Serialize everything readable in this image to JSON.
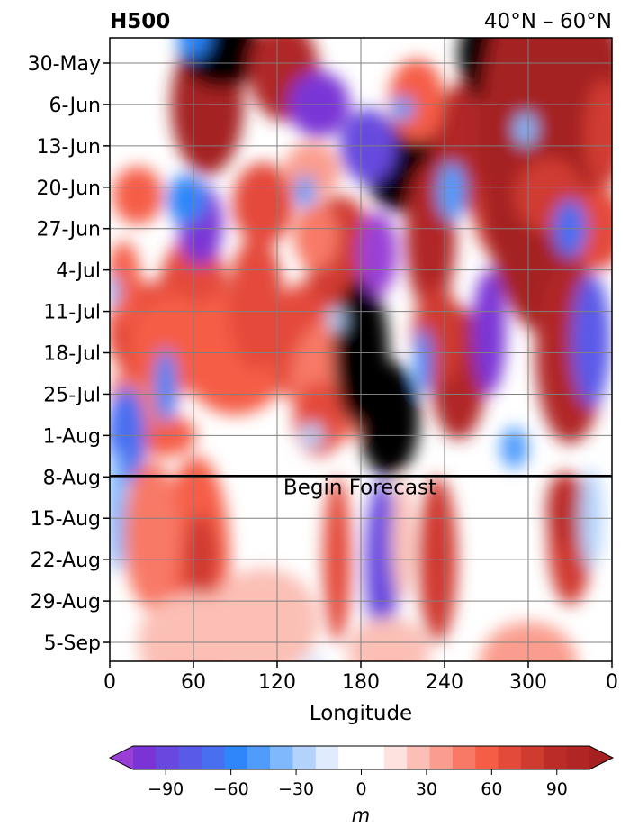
{
  "chart_data": {
    "type": "heatmap",
    "title_left": "H500",
    "title_right": "40°N – 60°N",
    "xlabel": "Longitude",
    "x_ticks": [
      "0",
      "60",
      "120",
      "180",
      "240",
      "300",
      "0"
    ],
    "xlim": [
      0,
      360
    ],
    "y_ticks": [
      "30-May",
      "6-Jun",
      "13-Jun",
      "20-Jun",
      "27-Jun",
      "4-Jul",
      "11-Jul",
      "18-Jul",
      "25-Jul",
      "1-Aug",
      "8-Aug",
      "15-Aug",
      "22-Aug",
      "29-Aug",
      "5-Sep"
    ],
    "forecast_start": "8-Aug",
    "annotation": "Begin Forecast",
    "colorbar": {
      "label": "m",
      "range": [
        -105,
        105
      ],
      "step": 10,
      "ticks": [
        "−90",
        "−60",
        "−30",
        "0",
        "30",
        "60",
        "90"
      ],
      "tick_values": [
        -90,
        -60,
        -30,
        0,
        30,
        60,
        90
      ],
      "colors": [
        "#7a34d6",
        "#6848df",
        "#5a5ae8",
        "#4a6ef0",
        "#2f86fa",
        "#4f9cfd",
        "#80b8fd",
        "#b3d3fc",
        "#e0ecfd",
        "#ffffff",
        "#ffffff",
        "#fde2e0",
        "#fbbfb6",
        "#fa9d8e",
        "#f87966",
        "#f55d46",
        "#e44a3a",
        "#d03b30",
        "#bb2c28",
        "#b12525"
      ],
      "extend": "both",
      "under_color": "#9a3fd6",
      "over_color": "#a52020"
    },
    "grid": true
  }
}
